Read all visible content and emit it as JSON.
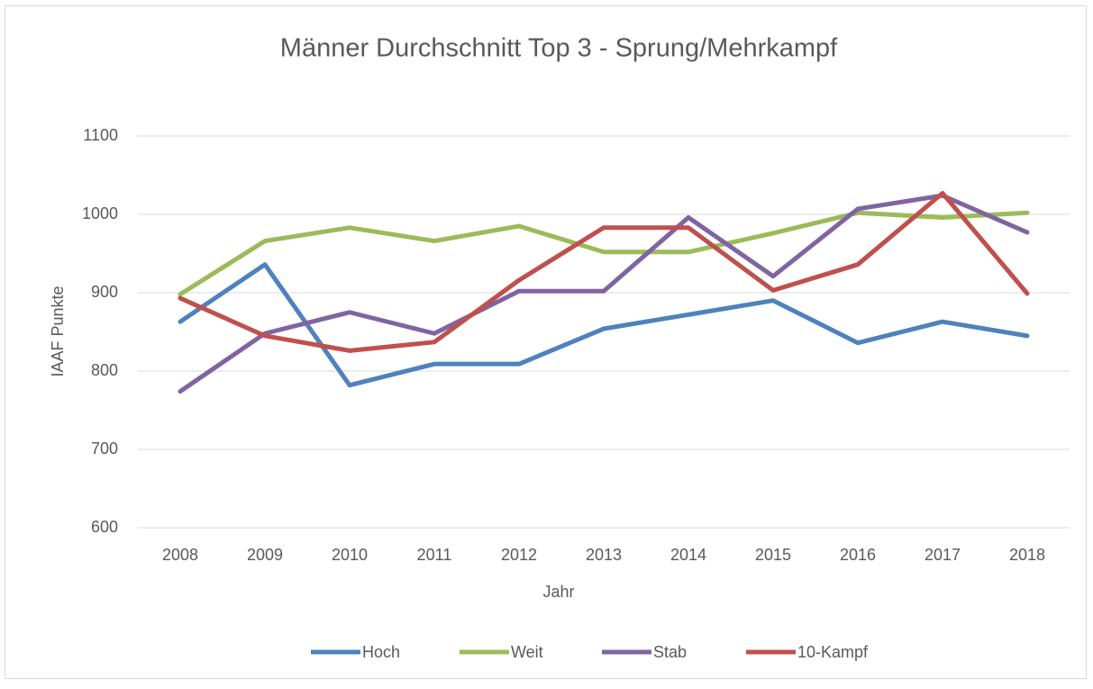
{
  "chart_data": {
    "type": "line",
    "title": "Männer Durchschnitt Top 3 - Sprung/Mehrkampf",
    "x_label": "Jahr",
    "y_label": "IAAF Punkte",
    "categories": [
      "2008",
      "2009",
      "2010",
      "2011",
      "2012",
      "2013",
      "2014",
      "2015",
      "2016",
      "2017",
      "2018"
    ],
    "series": [
      {
        "name": "Hoch",
        "color": "#4f81bd",
        "values": [
          863,
          936,
          782,
          809,
          809,
          854,
          872,
          890,
          836,
          863,
          845
        ]
      },
      {
        "name": "Weit",
        "color": "#9bbb59",
        "values": [
          898,
          966,
          983,
          966,
          985,
          952,
          952,
          976,
          1002,
          996,
          1002
        ]
      },
      {
        "name": "Stab",
        "color": "#8064a2",
        "values": [
          774,
          848,
          875,
          848,
          902,
          902,
          996,
          921,
          1007,
          1024,
          977
        ]
      },
      {
        "name": "10-Kampf",
        "color": "#c0504d",
        "values": [
          893,
          845,
          826,
          837,
          916,
          983,
          983,
          903,
          936,
          1027,
          899
        ]
      }
    ],
    "ylim": [
      600,
      1100
    ],
    "yticks": [
      600,
      700,
      800,
      900,
      1000,
      1100
    ],
    "grid": true,
    "legend": "bottom"
  }
}
